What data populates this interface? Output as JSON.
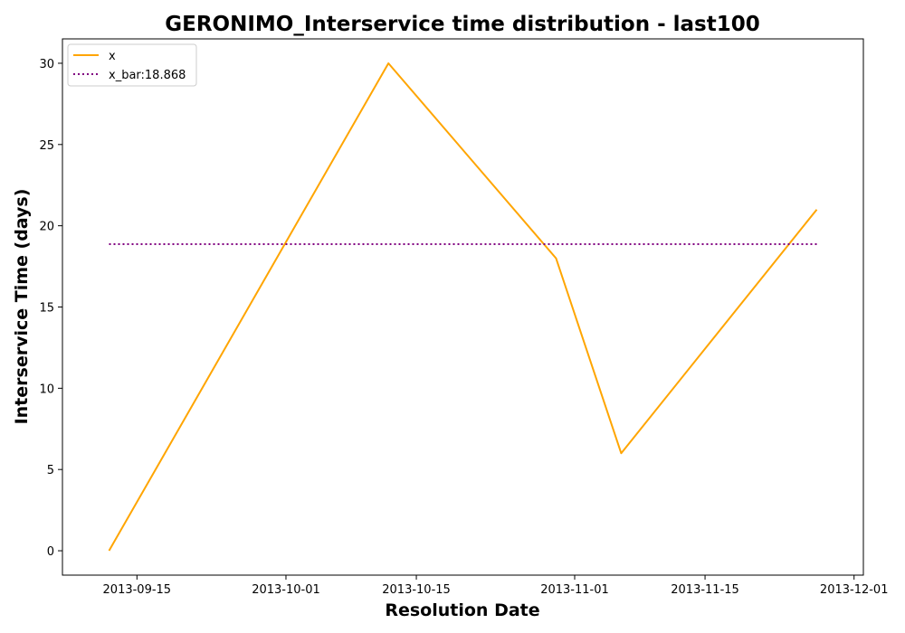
{
  "chart_data": {
    "type": "line",
    "title": "GERONIMO_Interservice time distribution - last100",
    "xlabel": "Resolution Date",
    "ylabel": "Interservice Time (days)",
    "x_ticks": [
      "2013-09-15",
      "2013-10-01",
      "2013-10-15",
      "2013-11-01",
      "2013-11-15",
      "2013-12-01"
    ],
    "y_ticks": [
      0,
      5,
      10,
      15,
      20,
      25,
      30
    ],
    "xlim": [
      "2013-09-07",
      "2013-12-02"
    ],
    "ylim": [
      -1.5,
      31.5
    ],
    "series": [
      {
        "name": "x",
        "color": "#ffa500",
        "style": "solid",
        "x": [
          "2013-09-12",
          "2013-10-01",
          "2013-10-12",
          "2013-10-30",
          "2013-11-06",
          "2013-11-27"
        ],
        "y": [
          0,
          19,
          30,
          18,
          6,
          21
        ]
      },
      {
        "name": "x_bar:18.868",
        "color": "#800080",
        "style": "dotted",
        "x": [
          "2013-09-12",
          "2013-11-27"
        ],
        "y": [
          18.868,
          18.868
        ]
      }
    ],
    "legend": "top-left",
    "grid": false
  }
}
